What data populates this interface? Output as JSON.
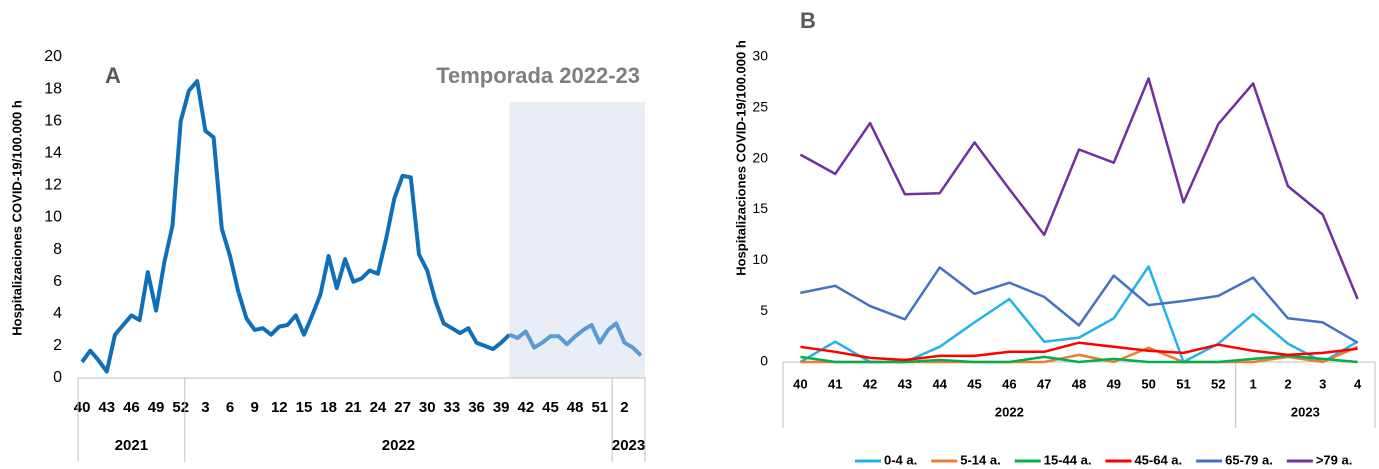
{
  "chart_data": [
    {
      "type": "line",
      "title": "A",
      "annotation": "Temporada 2022-23",
      "ylabel": "Hospitalizaciones COVID-19/100.000 h",
      "categories": [
        "40",
        null,
        null,
        "43",
        null,
        null,
        "46",
        null,
        null,
        "49",
        null,
        null,
        "52",
        null,
        null,
        "3",
        null,
        null,
        "6",
        null,
        null,
        "9",
        null,
        null,
        "12",
        null,
        null,
        "15",
        null,
        null,
        "18",
        null,
        null,
        "21",
        null,
        null,
        "24",
        null,
        null,
        "27",
        null,
        null,
        "30",
        null,
        null,
        "33",
        null,
        null,
        "36",
        null,
        null,
        "39",
        null,
        null,
        "42",
        null,
        null,
        "45",
        null,
        null,
        "48",
        null,
        null,
        "51",
        null,
        null,
        "2",
        null,
        null
      ],
      "groups": [
        {
          "label": "2021",
          "count": 13
        },
        {
          "label": "2022",
          "count": 52
        },
        {
          "label": "2023",
          "count": 4
        }
      ],
      "series": [
        {
          "color": "#0f6fba",
          "values": [
            1.0,
            1.7,
            1.1,
            0.4,
            2.7,
            3.3,
            3.9,
            3.6,
            6.6,
            4.2,
            7.2,
            9.5,
            16.0,
            17.9,
            18.5,
            15.4,
            15.0,
            9.3,
            7.6,
            5.4,
            3.7,
            3.0,
            3.1,
            2.7,
            3.2,
            3.3,
            3.9,
            2.7,
            3.9,
            5.2,
            7.6,
            5.6,
            7.4,
            6.0,
            6.2,
            6.7,
            6.5,
            8.7,
            11.2,
            12.6,
            12.5,
            7.7,
            6.7,
            4.8,
            3.4,
            3.1,
            2.8,
            3.1,
            2.2,
            2.0,
            1.8,
            2.2,
            2.7,
            null,
            null,
            null,
            null,
            null,
            null,
            null,
            null,
            null,
            null,
            null,
            null,
            null,
            null,
            null,
            null
          ]
        },
        {
          "color": "#5b9bd5",
          "highlight_color": "#e9eef6",
          "values": [
            null,
            null,
            null,
            null,
            null,
            null,
            null,
            null,
            null,
            null,
            null,
            null,
            null,
            null,
            null,
            null,
            null,
            null,
            null,
            null,
            null,
            null,
            null,
            null,
            null,
            null,
            null,
            null,
            null,
            null,
            null,
            null,
            null,
            null,
            null,
            null,
            null,
            null,
            null,
            null,
            null,
            null,
            null,
            null,
            null,
            null,
            null,
            null,
            null,
            null,
            null,
            null,
            2.7,
            2.5,
            2.9,
            1.9,
            2.2,
            2.6,
            2.6,
            2.1,
            2.6,
            3.0,
            3.3,
            2.2,
            3.0,
            3.4,
            2.2,
            1.9,
            1.4
          ]
        }
      ],
      "ylim": [
        0,
        20
      ],
      "yticks": [
        0,
        2,
        4,
        6,
        8,
        10,
        12,
        14,
        16,
        18,
        20
      ]
    },
    {
      "type": "line",
      "title": "B",
      "ylabel": "Hospitalizaciones COVID-19/100.000 h",
      "categories": [
        "40",
        "41",
        "42",
        "43",
        "44",
        "45",
        "46",
        "47",
        "48",
        "49",
        "50",
        "51",
        "52",
        "1",
        "2",
        "3",
        "4"
      ],
      "groups": [
        {
          "label": "2022",
          "count": 13
        },
        {
          "label": "2023",
          "count": 4
        }
      ],
      "series": [
        {
          "name": "0-4 a.",
          "color": "#1fb4e8",
          "values": [
            0,
            2.0,
            0,
            0,
            1.5,
            3.9,
            6.2,
            2.0,
            2.4,
            4.3,
            9.4,
            0,
            1.8,
            4.7,
            1.8,
            0,
            2.0
          ]
        },
        {
          "name": "5-14 a.",
          "color": "#ed7d31",
          "values": [
            0,
            0,
            0,
            0,
            0,
            0,
            0,
            0,
            0.7,
            0,
            1.4,
            0,
            0,
            0,
            0.5,
            0,
            1.5
          ]
        },
        {
          "name": "15-44 a.",
          "color": "#00b050",
          "values": [
            0.5,
            0,
            0,
            0,
            0.2,
            0,
            0,
            0.5,
            0,
            0.3,
            0,
            0,
            0,
            0.3,
            0.6,
            0.3,
            0
          ]
        },
        {
          "name": "45-64 a.",
          "color": "#ff0000",
          "values": [
            1.5,
            1.0,
            0.4,
            0.2,
            0.6,
            0.6,
            1.0,
            1.0,
            1.9,
            1.5,
            1.1,
            0.9,
            1.7,
            1.1,
            0.7,
            0.9,
            1.3
          ]
        },
        {
          "name": "65-79 a.",
          "color": "#4472c4",
          "values": [
            6.8,
            7.5,
            5.5,
            4.2,
            9.3,
            6.7,
            7.8,
            6.4,
            3.6,
            8.5,
            5.6,
            6.0,
            6.5,
            8.3,
            4.3,
            3.9,
            1.9
          ]
        },
        {
          "name": ">79 a.",
          "color": "#7030a0",
          "values": [
            20.4,
            18.5,
            23.5,
            16.5,
            16.6,
            21.6,
            17.0,
            12.5,
            20.9,
            19.6,
            27.9,
            15.7,
            23.4,
            27.4,
            17.3,
            14.5,
            6.2
          ]
        }
      ],
      "ylim": [
        0,
        30
      ],
      "yticks": [
        0,
        5,
        10,
        15,
        20,
        25,
        30
      ]
    }
  ]
}
